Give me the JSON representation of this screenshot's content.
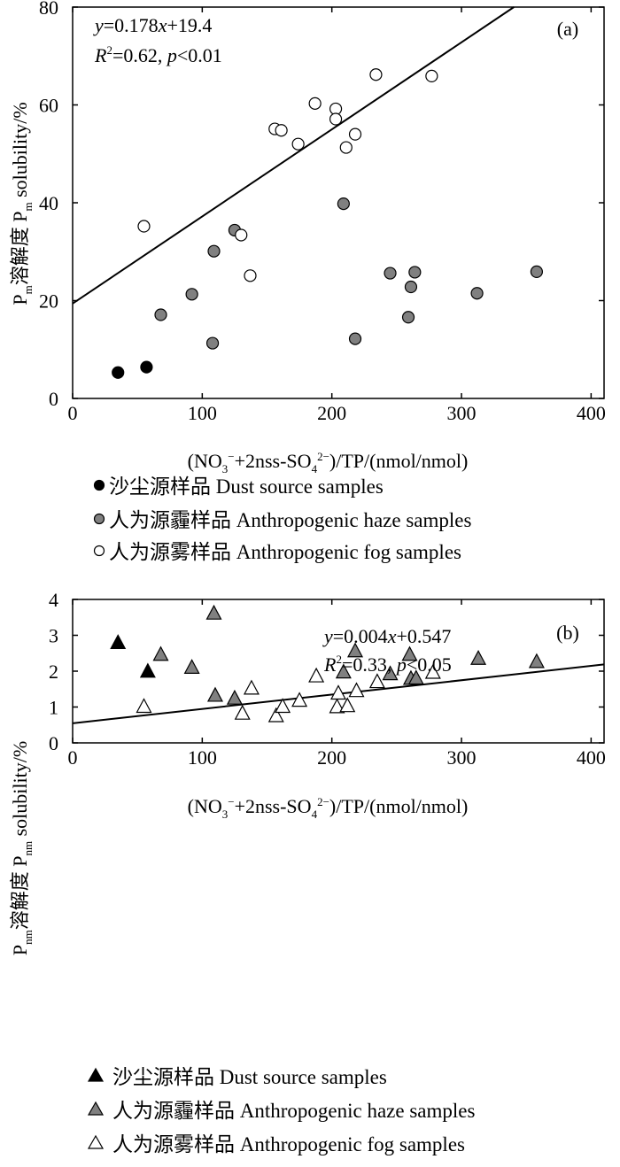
{
  "chart_data": [
    {
      "panel": "a",
      "type": "scatter",
      "tag": "(a)",
      "xlabel_parts": [
        "(NO",
        "3",
        "−",
        "+2nss-SO",
        "4",
        "2−",
        ")/TP/(nmol/nmol)"
      ],
      "ylabel_parts": [
        "P",
        "m",
        "溶解度 P",
        "m",
        " solubility/%"
      ],
      "xlim": [
        0,
        410
      ],
      "ylim": [
        0,
        80
      ],
      "xticks": [
        0,
        100,
        200,
        300,
        400
      ],
      "yticks": [
        0,
        20,
        40,
        60,
        80
      ],
      "regression": {
        "slope": 0.178,
        "intercept": 19.4,
        "eq_parts": [
          "y",
          "=0.178",
          "x",
          "+19.4"
        ],
        "r2_parts": [
          "R",
          "2",
          "=0.62, ",
          "p",
          "<0.01"
        ]
      },
      "legend": [
        {
          "marker": "circle",
          "color": "#000000",
          "label": "沙尘源样品 Dust source samples"
        },
        {
          "marker": "circle",
          "color": "#808080",
          "label": "人为源霾样品 Anthropogenic haze samples"
        },
        {
          "marker": "circle",
          "color": "#ffffff",
          "label": "人为源雾样品 Anthropogenic fog samples"
        }
      ],
      "series": [
        {
          "name": "Dust source samples",
          "color": "#000000",
          "points": [
            [
              35,
              5.3
            ],
            [
              57,
              6.4
            ]
          ]
        },
        {
          "name": "Anthropogenic haze samples",
          "color": "#808080",
          "points": [
            [
              68,
              17.1
            ],
            [
              92,
              21.3
            ],
            [
              108,
              11.3
            ],
            [
              109,
              30.1
            ],
            [
              125,
              34.4
            ],
            [
              209,
              39.8
            ],
            [
              218,
              12.2
            ],
            [
              245,
              25.6
            ],
            [
              259,
              16.6
            ],
            [
              261,
              22.8
            ],
            [
              264,
              25.8
            ],
            [
              312,
              21.5
            ],
            [
              358,
              25.9
            ]
          ]
        },
        {
          "name": "Anthropogenic fog samples",
          "color": "#ffffff",
          "points": [
            [
              55,
              35.2
            ],
            [
              130,
              33.4
            ],
            [
              137,
              25.1
            ],
            [
              156,
              55.1
            ],
            [
              161,
              54.8
            ],
            [
              174,
              52.0
            ],
            [
              187,
              60.3
            ],
            [
              203,
              59.2
            ],
            [
              203,
              57.1
            ],
            [
              211,
              51.3
            ],
            [
              218,
              54.0
            ],
            [
              234,
              66.2
            ],
            [
              277,
              65.9
            ]
          ]
        }
      ]
    },
    {
      "panel": "b",
      "type": "scatter",
      "tag": "(b)",
      "xlabel_parts": [
        "(NO",
        "3",
        "−",
        "+2nss-SO",
        "4",
        "2−",
        ")/TP/(nmol/nmol)"
      ],
      "ylabel_parts": [
        "P",
        "nm",
        "溶解度 P",
        "nm",
        " solubility/%"
      ],
      "xlim": [
        0,
        410
      ],
      "ylim": [
        0,
        4
      ],
      "xticks": [
        0,
        100,
        200,
        300,
        400
      ],
      "yticks": [
        0,
        1,
        2,
        3,
        4
      ],
      "regression": {
        "slope": 0.004,
        "intercept": 0.547,
        "eq_parts": [
          "y",
          "=0.004",
          "x",
          "+0.547"
        ],
        "r2_parts": [
          "R",
          "2",
          "=0.33, ",
          "p",
          "<0.05"
        ]
      },
      "legend": [
        {
          "marker": "triangle",
          "color": "#000000",
          "label": "沙尘源样品 Dust source samples"
        },
        {
          "marker": "triangle",
          "color": "#808080",
          "label": "人为源霾样品 Anthropogenic haze samples"
        },
        {
          "marker": "triangle",
          "color": "#ffffff",
          "label": "人为源雾样品 Anthropogenic fog samples"
        }
      ],
      "series": [
        {
          "name": "Dust source samples",
          "color": "#000000",
          "points": [
            [
              35,
              2.78
            ],
            [
              58,
              1.98
            ]
          ]
        },
        {
          "name": "Anthropogenic haze samples",
          "color": "#808080",
          "points": [
            [
              68,
              2.45
            ],
            [
              92,
              2.09
            ],
            [
              109,
              3.6
            ],
            [
              110,
              1.31
            ],
            [
              125,
              1.23
            ],
            [
              209,
              1.96
            ],
            [
              218,
              2.55
            ],
            [
              245,
              1.91
            ],
            [
              260,
              2.45
            ],
            [
              261,
              1.78
            ],
            [
              265,
              1.79
            ],
            [
              313,
              2.34
            ],
            [
              358,
              2.25
            ]
          ]
        },
        {
          "name": "Anthropogenic fog samples",
          "color": "#ffffff",
          "points": [
            [
              55,
              1.0
            ],
            [
              131,
              0.81
            ],
            [
              138,
              1.51
            ],
            [
              157,
              0.74
            ],
            [
              162,
              1.0
            ],
            [
              175,
              1.17
            ],
            [
              188,
              1.85
            ],
            [
              204,
              0.99
            ],
            [
              205,
              1.37
            ],
            [
              212,
              1.02
            ],
            [
              219,
              1.44
            ],
            [
              235,
              1.69
            ],
            [
              278,
              1.95
            ]
          ]
        }
      ]
    }
  ]
}
